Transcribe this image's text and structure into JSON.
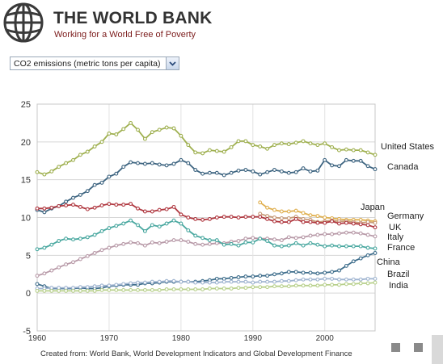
{
  "header": {
    "brand_name": "THE WORLD BANK",
    "tagline": "Working for a World Free of Poverty",
    "logo_icon": "globe-icon"
  },
  "indicator_select": {
    "value": "CO2 emissions (metric tons per capita)",
    "icon": "chevron-down-icon"
  },
  "footer": {
    "source": "Created from: World Bank, World Development Indicators and Global Development Finance"
  },
  "colors": {
    "brand_dark_red": "#7b1b1b",
    "grid": "#d6d6d6"
  },
  "chart_data": {
    "type": "line",
    "title": "",
    "xlabel": "",
    "ylabel": "",
    "xlim": [
      1960,
      2007
    ],
    "ylim": [
      -5,
      25
    ],
    "x_ticks": [
      1960,
      1970,
      1980,
      1990,
      2000
    ],
    "y_ticks": [
      -5,
      0,
      5,
      10,
      15,
      20,
      25
    ],
    "grid": true,
    "legend": "labels at right end of lines",
    "x": [
      1960,
      1961,
      1962,
      1963,
      1964,
      1965,
      1966,
      1967,
      1968,
      1969,
      1970,
      1971,
      1972,
      1973,
      1974,
      1975,
      1976,
      1977,
      1978,
      1979,
      1980,
      1981,
      1982,
      1983,
      1984,
      1985,
      1986,
      1987,
      1988,
      1989,
      1990,
      1991,
      1992,
      1993,
      1994,
      1995,
      1996,
      1997,
      1998,
      1999,
      2000,
      2001,
      2002,
      2003,
      2004,
      2005,
      2006,
      2007
    ],
    "series": [
      {
        "name": "United States",
        "color": "#9fb050",
        "values": [
          16.0,
          15.7,
          16.1,
          16.7,
          17.2,
          17.6,
          18.3,
          18.7,
          19.4,
          20.0,
          21.1,
          21.0,
          21.7,
          22.5,
          21.6,
          20.4,
          21.3,
          21.6,
          21.9,
          21.8,
          20.8,
          19.6,
          18.6,
          18.5,
          18.9,
          18.8,
          18.7,
          19.3,
          20.1,
          20.1,
          19.6,
          19.4,
          19.1,
          19.6,
          19.8,
          19.7,
          19.9,
          20.1,
          19.8,
          19.6,
          19.8,
          19.3,
          18.9,
          19.0,
          18.9,
          18.9,
          18.6,
          18.3
        ]
      },
      {
        "name": "Canada",
        "color": "#3d6480",
        "values": [
          11.0,
          10.7,
          11.2,
          11.5,
          12.1,
          12.6,
          13.0,
          13.5,
          14.3,
          14.6,
          15.4,
          15.8,
          16.7,
          17.3,
          17.2,
          17.1,
          17.2,
          17.0,
          16.9,
          17.1,
          17.6,
          17.2,
          16.3,
          15.8,
          15.9,
          15.9,
          15.6,
          15.9,
          16.2,
          16.3,
          16.1,
          15.7,
          16.0,
          16.3,
          16.1,
          15.9,
          16.0,
          16.5,
          16.1,
          16.2,
          17.6,
          16.9,
          16.8,
          17.6,
          17.5,
          17.5,
          16.8,
          16.4
        ]
      },
      {
        "name": "Japan",
        "color": "#e0b050",
        "values": [
          null,
          null,
          null,
          null,
          null,
          null,
          null,
          null,
          null,
          null,
          null,
          null,
          null,
          null,
          null,
          null,
          null,
          null,
          null,
          null,
          null,
          null,
          null,
          null,
          null,
          null,
          null,
          null,
          null,
          null,
          null,
          12.0,
          11.3,
          11.0,
          10.8,
          10.8,
          10.9,
          10.6,
          10.3,
          10.2,
          10.0,
          9.9,
          9.8,
          9.7,
          9.7,
          9.7,
          9.6,
          9.5
        ]
      },
      {
        "name": "Germany",
        "color": "#c79a78",
        "values": [
          null,
          null,
          null,
          null,
          null,
          null,
          null,
          null,
          null,
          null,
          null,
          null,
          null,
          null,
          null,
          null,
          null,
          null,
          null,
          null,
          null,
          null,
          null,
          null,
          null,
          null,
          null,
          null,
          null,
          null,
          null,
          10.5,
          10.2,
          10.0,
          9.9,
          9.9,
          10.1,
          9.8,
          9.7,
          9.4,
          9.5,
          9.6,
          9.5,
          9.5,
          9.4,
          9.3,
          9.4,
          9.3
        ]
      },
      {
        "name": "UK",
        "color": "#b03840",
        "values": [
          11.2,
          11.2,
          11.3,
          11.5,
          11.6,
          11.7,
          11.4,
          11.1,
          11.3,
          11.6,
          11.8,
          11.7,
          11.7,
          11.8,
          11.2,
          10.8,
          10.8,
          11.0,
          11.1,
          11.4,
          10.4,
          10.0,
          9.8,
          9.7,
          9.8,
          10.0,
          10.1,
          10.1,
          10.0,
          10.1,
          10.1,
          10.1,
          9.8,
          9.5,
          9.4,
          9.4,
          9.8,
          9.4,
          9.4,
          9.3,
          9.3,
          9.5,
          9.2,
          9.3,
          9.2,
          9.1,
          9.0,
          8.7
        ]
      },
      {
        "name": "Italy",
        "color": "#b89aa8",
        "values": [
          2.3,
          2.6,
          3.0,
          3.4,
          3.8,
          4.1,
          4.5,
          4.9,
          5.3,
          5.7,
          6.0,
          6.3,
          6.5,
          6.7,
          6.6,
          6.3,
          6.7,
          6.6,
          6.8,
          7.0,
          7.0,
          6.8,
          6.5,
          6.4,
          6.5,
          6.6,
          6.6,
          6.8,
          6.9,
          7.2,
          7.3,
          7.2,
          7.2,
          7.1,
          7.0,
          7.4,
          7.3,
          7.4,
          7.6,
          7.7,
          7.8,
          7.8,
          7.9,
          8.0,
          8.0,
          7.9,
          7.7,
          7.5
        ]
      },
      {
        "name": "France",
        "color": "#4aa8a0",
        "values": [
          5.8,
          6.0,
          6.4,
          6.9,
          7.2,
          7.1,
          7.2,
          7.4,
          7.7,
          8.2,
          8.6,
          8.9,
          9.2,
          9.6,
          9.0,
          8.2,
          9.0,
          8.8,
          9.2,
          9.6,
          9.2,
          8.3,
          7.6,
          7.3,
          7.0,
          7.0,
          6.4,
          6.5,
          6.3,
          6.7,
          6.7,
          7.2,
          6.9,
          6.3,
          6.2,
          6.3,
          6.6,
          6.3,
          6.6,
          6.4,
          6.2,
          6.3,
          6.2,
          6.2,
          6.2,
          6.2,
          6.0,
          5.9
        ]
      },
      {
        "name": "China",
        "color": "#3f6e8c",
        "values": [
          1.2,
          0.9,
          0.6,
          0.6,
          0.6,
          0.6,
          0.7,
          0.6,
          0.6,
          0.7,
          0.9,
          1.0,
          1.1,
          1.1,
          1.1,
          1.3,
          1.3,
          1.4,
          1.5,
          1.5,
          1.5,
          1.5,
          1.5,
          1.6,
          1.7,
          1.9,
          1.9,
          2.0,
          2.1,
          2.2,
          2.2,
          2.3,
          2.3,
          2.5,
          2.6,
          2.8,
          2.8,
          2.7,
          2.7,
          2.6,
          2.7,
          2.8,
          3.0,
          3.6,
          4.2,
          4.6,
          5.0,
          5.3
        ]
      },
      {
        "name": "Brazil",
        "color": "#9fb4d0",
        "values": [
          0.6,
          0.6,
          0.7,
          0.7,
          0.7,
          0.7,
          0.8,
          0.8,
          0.9,
          1.0,
          1.0,
          1.1,
          1.2,
          1.3,
          1.4,
          1.4,
          1.5,
          1.5,
          1.6,
          1.6,
          1.5,
          1.5,
          1.4,
          1.4,
          1.4,
          1.4,
          1.5,
          1.5,
          1.5,
          1.5,
          1.4,
          1.5,
          1.5,
          1.5,
          1.6,
          1.6,
          1.7,
          1.8,
          1.8,
          1.8,
          1.9,
          1.9,
          1.8,
          1.8,
          1.8,
          1.8,
          1.9,
          1.9
        ]
      },
      {
        "name": "India",
        "color": "#b8d08c",
        "values": [
          0.3,
          0.3,
          0.3,
          0.3,
          0.3,
          0.3,
          0.3,
          0.3,
          0.3,
          0.4,
          0.4,
          0.4,
          0.4,
          0.4,
          0.4,
          0.4,
          0.4,
          0.4,
          0.5,
          0.5,
          0.5,
          0.5,
          0.5,
          0.5,
          0.6,
          0.6,
          0.6,
          0.6,
          0.7,
          0.7,
          0.8,
          0.8,
          0.8,
          0.9,
          0.9,
          0.9,
          1.0,
          1.0,
          1.0,
          1.0,
          1.1,
          1.1,
          1.1,
          1.2,
          1.2,
          1.3,
          1.3,
          1.4
        ]
      }
    ]
  }
}
